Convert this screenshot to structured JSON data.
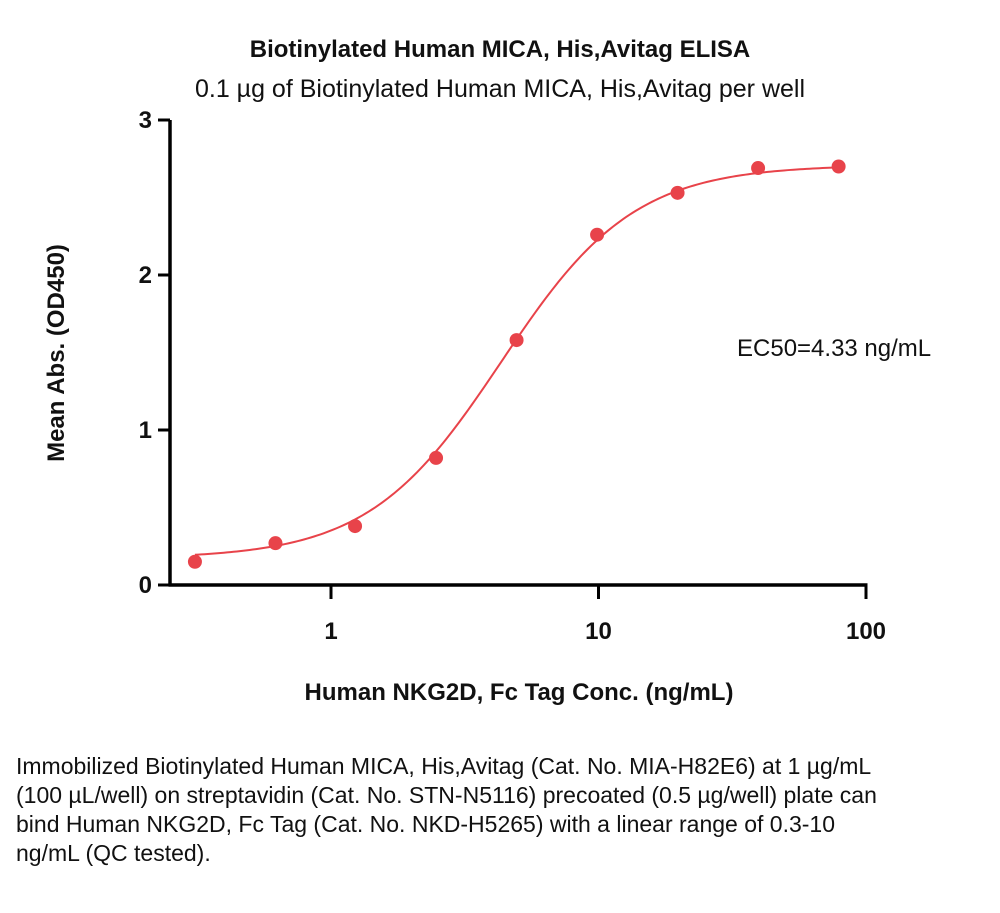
{
  "chart_data": {
    "type": "scatter",
    "title": "Biotinylated Human MICA, His,Avitag ELISA",
    "subtitle": "0.1 µg of Biotinylated Human MICA, His,Avitag per well",
    "xlabel": "Human NKG2D, Fc Tag  Conc. (ng/mL)",
    "ylabel": "Mean Abs. (OD450)",
    "x_scale": "log",
    "xlim": [
      0.3,
      100
    ],
    "ylim": [
      0,
      3
    ],
    "x_ticks": [
      1,
      10,
      100
    ],
    "x_tick_labels": [
      "1",
      "10",
      "100"
    ],
    "y_ticks": [
      0,
      1,
      2,
      3
    ],
    "y_tick_labels": [
      "0",
      "1",
      "2",
      "3"
    ],
    "grid": false,
    "legend": "none",
    "series": [
      {
        "color": "#e8434a",
        "fit": "4PL",
        "x": [
          0.31,
          0.62,
          1.23,
          2.47,
          4.94,
          9.88,
          19.75,
          39.5,
          79
        ],
        "y": [
          0.15,
          0.27,
          0.38,
          0.82,
          1.58,
          2.26,
          2.53,
          2.69,
          2.7
        ]
      }
    ],
    "fit_params": {
      "bottom": 0.17,
      "top": 2.71,
      "ec50": 4.33,
      "hill": 1.75
    },
    "annotations": [
      "EC50=4.33 ng/mL"
    ]
  },
  "caption": "Immobilized Biotinylated Human MICA, His,Avitag (Cat. No. MIA-H82E6) at 1 µg/mL (100 µL/well) on streptavidin (Cat. No. STN-N5116) precoated (0.5 µg/well) plate can bind Human NKG2D, Fc Tag (Cat. No. NKD-H5265) with a linear range of 0.3-10 ng/mL (QC tested)."
}
